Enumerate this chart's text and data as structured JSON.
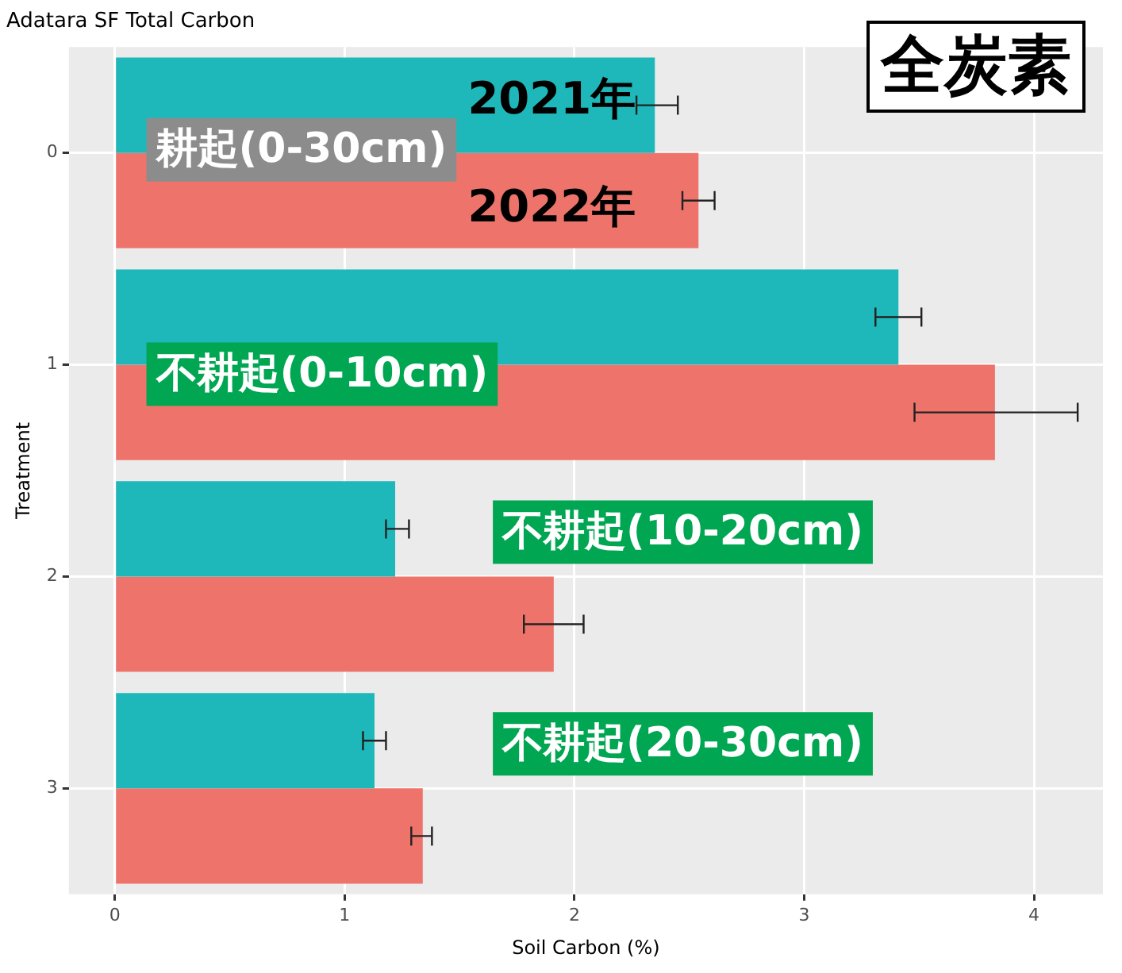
{
  "chart_data": {
    "type": "bar",
    "orientation": "horizontal",
    "title": "Adatara SF Total Carbon",
    "xlabel": "Soil Carbon (%)",
    "ylabel": "Treatment",
    "categories": [
      "0",
      "1",
      "2",
      "3"
    ],
    "series": [
      {
        "name": "2021年",
        "color": "#1fb8ba",
        "values": [
          2.35,
          3.41,
          1.22,
          1.13
        ],
        "errors": [
          [
            2.27,
            2.45
          ],
          [
            3.31,
            3.51
          ],
          [
            1.18,
            1.28
          ],
          [
            1.08,
            1.18
          ]
        ]
      },
      {
        "name": "2022年",
        "color": "#ee746b",
        "values": [
          2.54,
          3.83,
          1.91,
          1.34
        ],
        "errors": [
          [
            2.47,
            2.61
          ],
          [
            3.48,
            4.19
          ],
          [
            1.78,
            2.04
          ],
          [
            1.29,
            1.38
          ]
        ]
      }
    ],
    "xlim": [
      -0.2,
      4.3
    ],
    "xticks": [
      0,
      1,
      2,
      3,
      4
    ],
    "grid": true,
    "legend": false,
    "annotations": [
      "全炭素",
      "耕起(0-30cm)",
      "不耕起(0-10cm)",
      "不耕起(10-20cm)",
      "不耕起(20-30cm)"
    ]
  }
}
